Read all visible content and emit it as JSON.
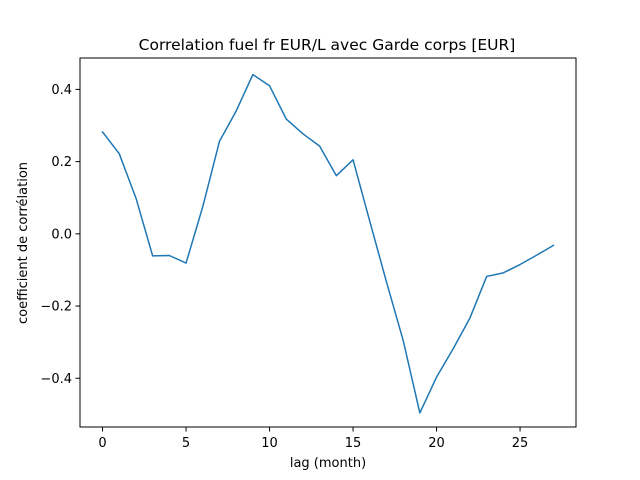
{
  "chart_data": {
    "type": "line",
    "title": "Correlation fuel fr EUR/L avec Garde corps [EUR]",
    "xlabel": "lag (month)",
    "ylabel": "coefficient de corrélation",
    "xlim": [
      -1.35,
      28.35
    ],
    "ylim": [
      -0.535,
      0.487
    ],
    "xticks": [
      0,
      5,
      10,
      15,
      20,
      25
    ],
    "yticks": [
      -0.4,
      -0.2,
      0.0,
      0.2,
      0.4
    ],
    "xtick_labels": [
      "0",
      "5",
      "10",
      "15",
      "20",
      "25"
    ],
    "ytick_labels": [
      "−0.4",
      "−0.2",
      "0.0",
      "0.2",
      "0.4"
    ],
    "grid": false,
    "legend": "none",
    "series": [
      {
        "color": "#1f77b4",
        "x": [
          0,
          1,
          2,
          3,
          4,
          5,
          6,
          7,
          8,
          9,
          10,
          11,
          12,
          13,
          14,
          15,
          16,
          17,
          18,
          19,
          20,
          21,
          22,
          23,
          24,
          25,
          26,
          27
        ],
        "y": [
          0.282,
          0.222,
          0.099,
          -0.061,
          -0.06,
          -0.081,
          0.075,
          0.256,
          0.34,
          0.441,
          0.41,
          0.318,
          0.277,
          0.243,
          0.161,
          0.205,
          0.035,
          -0.133,
          -0.295,
          -0.496,
          -0.397,
          -0.318,
          -0.233,
          -0.118,
          -0.108,
          -0.085,
          -0.059,
          -0.032
        ]
      }
    ]
  }
}
